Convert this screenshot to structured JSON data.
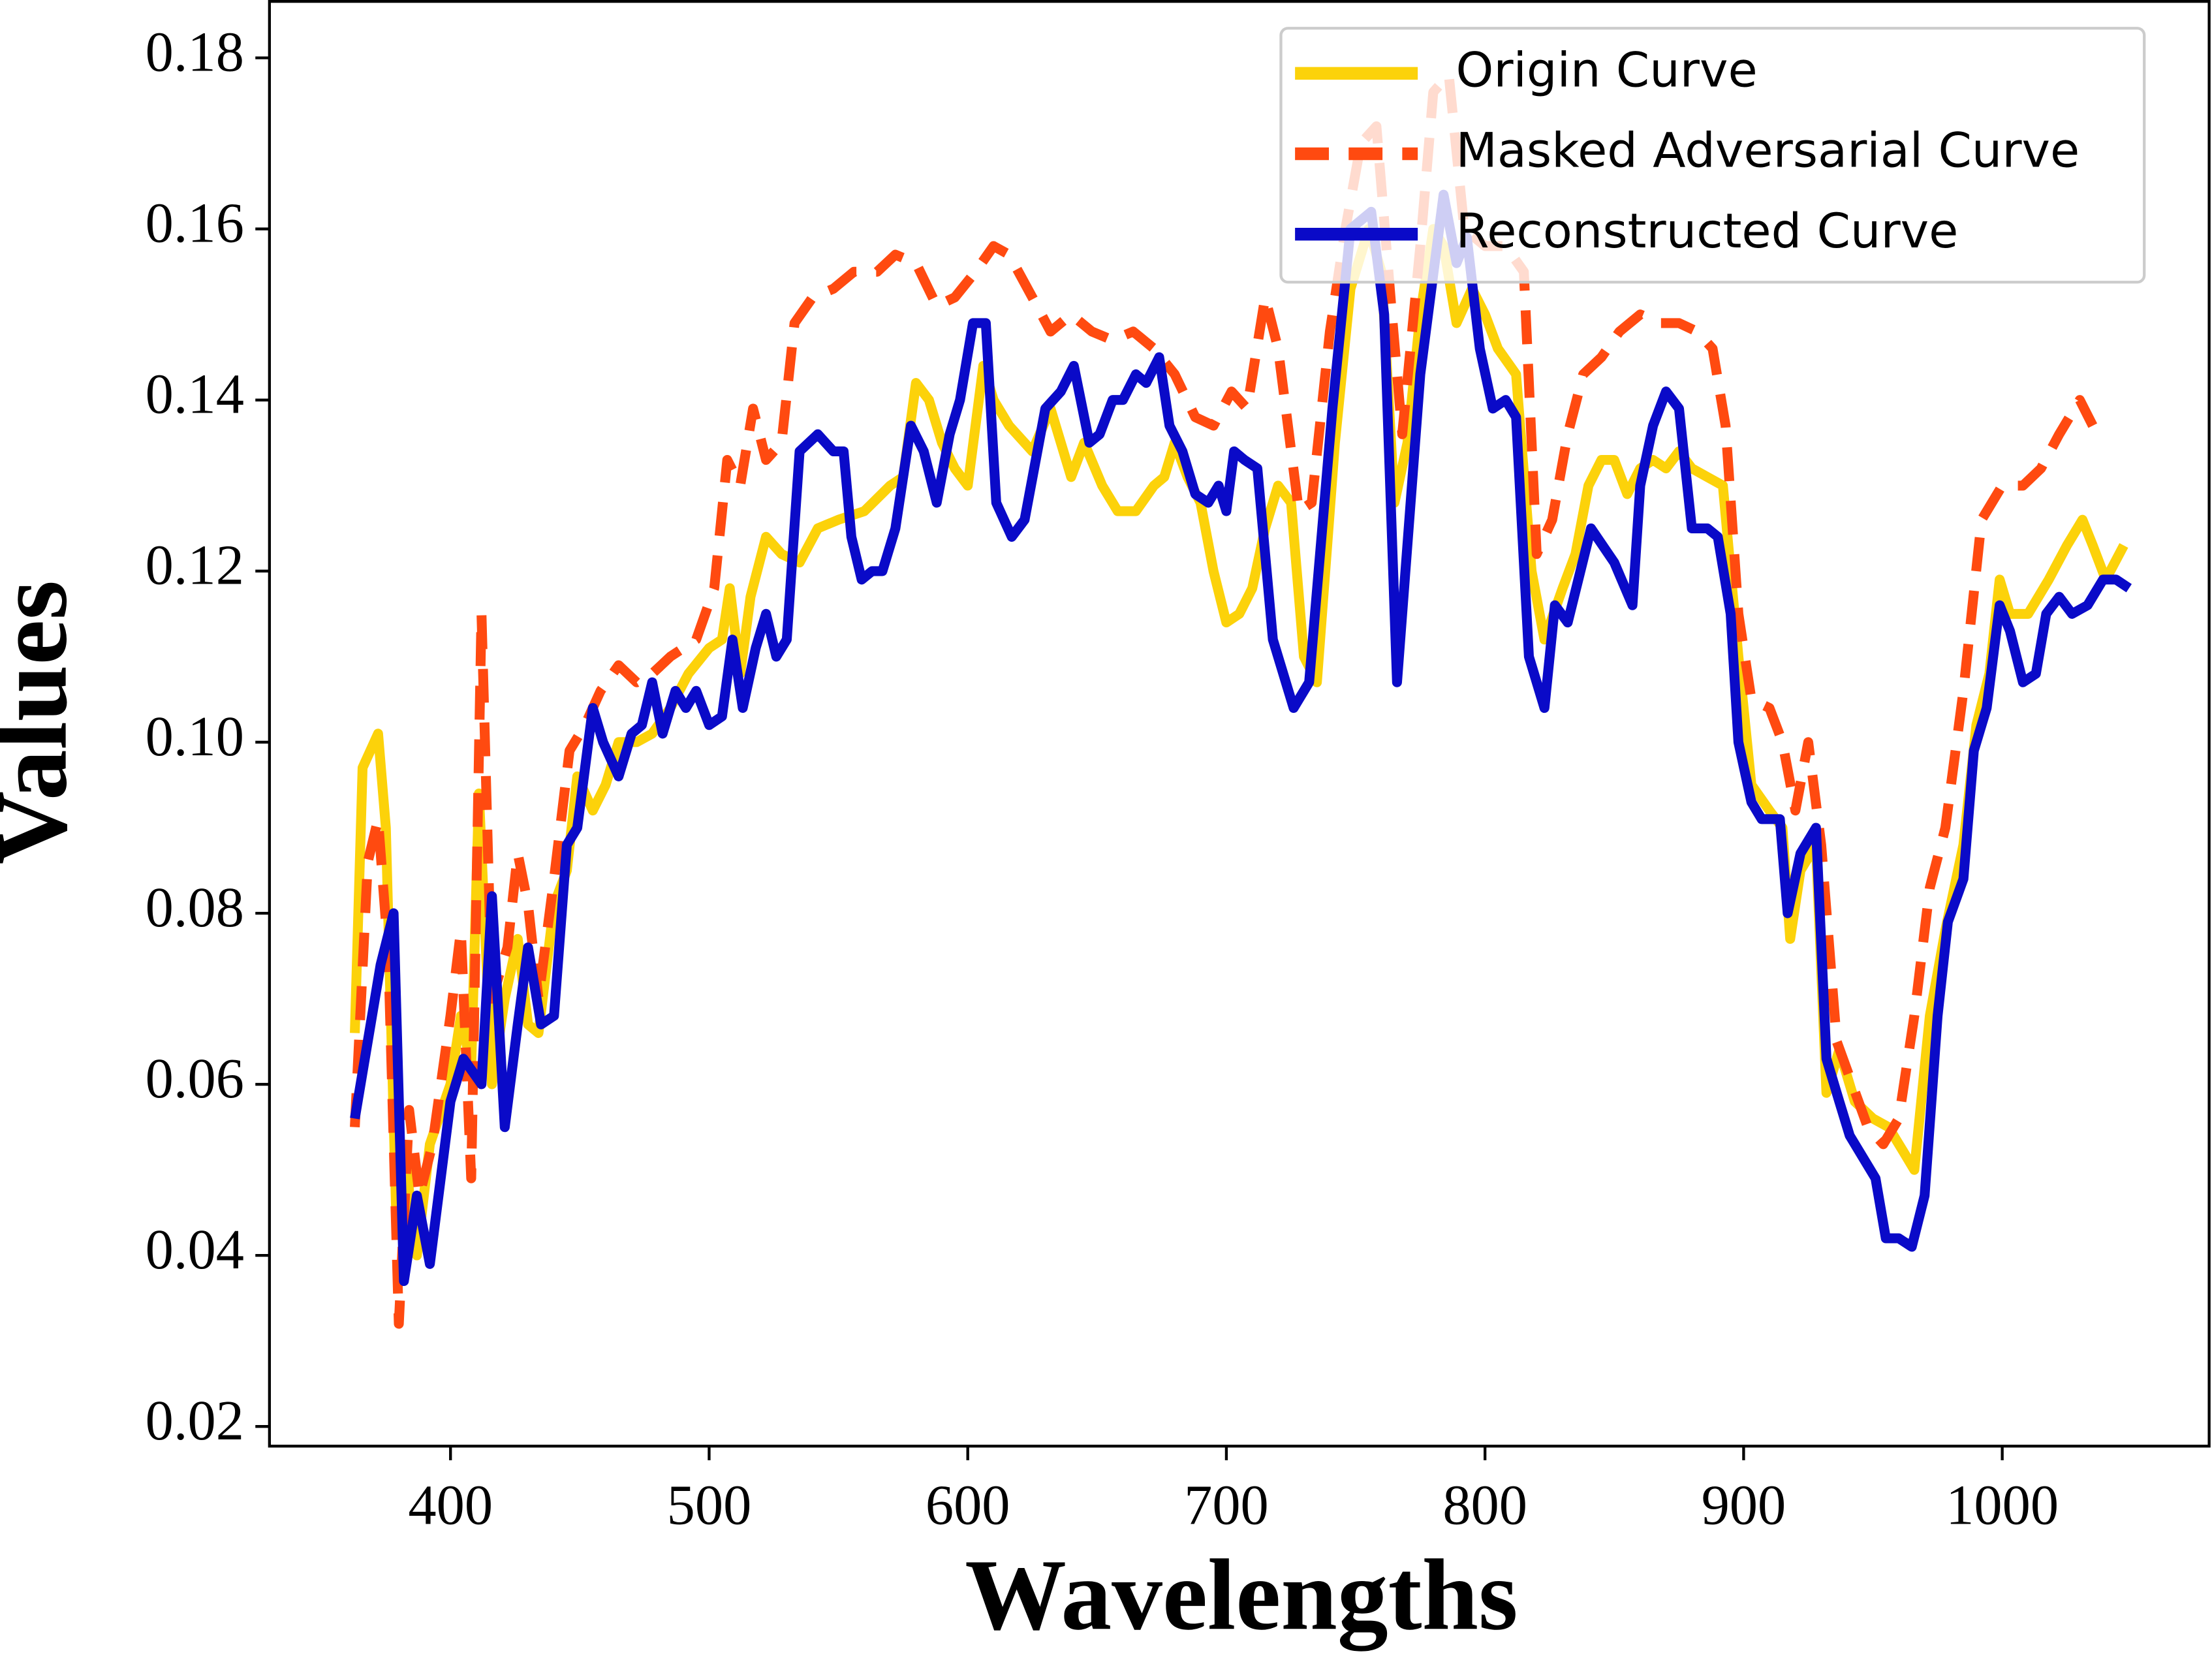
{
  "chart_data": {
    "type": "line",
    "xlabel": "Wavelengths",
    "ylabel": "Values",
    "xlim": [
      330,
      1080
    ],
    "ylim": [
      0.0177,
      0.1866
    ],
    "xticks": [
      400,
      500,
      600,
      700,
      800,
      900,
      1000
    ],
    "yticks": [
      0.02,
      0.04,
      0.06,
      0.08,
      {
        "value": 0.1,
        "label": "0.10"
      },
      0.12,
      0.14,
      0.16,
      0.18
    ],
    "legend": "upper right",
    "series": [
      {
        "name": "Origin Curve",
        "color": "#fcd20a",
        "linestyle": "solid",
        "x": [
          363,
          366,
          372,
          375,
          379,
          383,
          387,
          392,
          400,
          404,
          408,
          411,
          416,
          421,
          426,
          430,
          434,
          440,
          445,
          449,
          455,
          460,
          465,
          472,
          478,
          485,
          492,
          500,
          505,
          508,
          512,
          516,
          522,
          528,
          535,
          542,
          550,
          560,
          570,
          575,
          580,
          585,
          590,
          595,
          600,
          606,
          610,
          616,
          625,
          632,
          640,
          645,
          652,
          658,
          665,
          672,
          676,
          680,
          685,
          690,
          695,
          700,
          705,
          710,
          715,
          720,
          725,
          730,
          735,
          742,
          748,
          755,
          760,
          765,
          770,
          775,
          780,
          784,
          789,
          795,
          800,
          805,
          812,
          818,
          823,
          830,
          835,
          840,
          845,
          850,
          855,
          860,
          865,
          870,
          875,
          880,
          886,
          892,
          898,
          903,
          910,
          915,
          918,
          922,
          928,
          932,
          937,
          943,
          950,
          956,
          962,
          966,
          972,
          978,
          985,
          990,
          995,
          999,
          1003,
          1010,
          1018,
          1025,
          1031,
          1035,
          1040,
          1047
        ],
        "values": [
          0.066,
          0.097,
          0.101,
          0.09,
          0.045,
          0.05,
          0.04,
          0.053,
          0.06,
          0.068,
          0.062,
          0.094,
          0.06,
          0.07,
          0.077,
          0.067,
          0.066,
          0.081,
          0.085,
          0.096,
          0.092,
          0.095,
          0.1,
          0.1,
          0.101,
          0.104,
          0.108,
          0.111,
          0.112,
          0.118,
          0.108,
          0.117,
          0.124,
          0.122,
          0.121,
          0.125,
          0.126,
          0.127,
          0.13,
          0.131,
          0.142,
          0.14,
          0.135,
          0.132,
          0.13,
          0.144,
          0.14,
          0.137,
          0.134,
          0.139,
          0.131,
          0.135,
          0.13,
          0.127,
          0.127,
          0.13,
          0.131,
          0.135,
          0.131,
          0.128,
          0.12,
          0.114,
          0.115,
          0.118,
          0.125,
          0.13,
          0.128,
          0.11,
          0.107,
          0.135,
          0.153,
          0.16,
          0.155,
          0.128,
          0.135,
          0.15,
          0.16,
          0.158,
          0.149,
          0.153,
          0.15,
          0.146,
          0.143,
          0.12,
          0.112,
          0.118,
          0.122,
          0.13,
          0.133,
          0.133,
          0.129,
          0.132,
          0.133,
          0.132,
          0.134,
          0.132,
          0.131,
          0.13,
          0.11,
          0.095,
          0.092,
          0.09,
          0.077,
          0.085,
          0.088,
          0.059,
          0.064,
          0.058,
          0.056,
          0.055,
          0.052,
          0.05,
          0.068,
          0.078,
          0.088,
          0.102,
          0.108,
          0.119,
          0.115,
          0.115,
          0.119,
          0.123,
          0.126,
          0.123,
          0.119,
          0.123
        ]
      },
      {
        "name": "Masked Adversarial Curve",
        "color": "#ff4a10",
        "linestyle": "dashed",
        "x": [
          363,
          368,
          372,
          376,
          380,
          384,
          388,
          393,
          400,
          404,
          408,
          412,
          416,
          422,
          426,
          430,
          434,
          440,
          446,
          452,
          458,
          465,
          472,
          478,
          485,
          495,
          502,
          507,
          512,
          517,
          522,
          528,
          533,
          540,
          548,
          556,
          565,
          572,
          580,
          588,
          595,
          603,
          610,
          616,
          625,
          632,
          640,
          648,
          656,
          664,
          672,
          680,
          688,
          695,
          702,
          708,
          715,
          720,
          728,
          733,
          740,
          746,
          752,
          758,
          764,
          768,
          775,
          780,
          786,
          792,
          800,
          808,
          815,
          820,
          826,
          832,
          838,
          845,
          852,
          860,
          868,
          875,
          882,
          888,
          893,
          898,
          903,
          910,
          915,
          920,
          925,
          930,
          936,
          942,
          948,
          954,
          960,
          966,
          972,
          978,
          985,
          992,
          1000,
          1008,
          1015,
          1022,
          1030,
          1035
        ],
        "values": [
          0.055,
          0.086,
          0.091,
          0.075,
          0.032,
          0.057,
          0.047,
          0.053,
          0.068,
          0.078,
          0.049,
          0.115,
          0.07,
          0.076,
          0.087,
          0.081,
          0.07,
          0.084,
          0.099,
          0.102,
          0.106,
          0.109,
          0.107,
          0.108,
          0.11,
          0.112,
          0.118,
          0.133,
          0.13,
          0.139,
          0.133,
          0.135,
          0.149,
          0.152,
          0.153,
          0.155,
          0.155,
          0.157,
          0.156,
          0.151,
          0.152,
          0.155,
          0.158,
          0.157,
          0.152,
          0.148,
          0.15,
          0.148,
          0.147,
          0.148,
          0.146,
          0.143,
          0.138,
          0.137,
          0.141,
          0.139,
          0.152,
          0.146,
          0.127,
          0.128,
          0.148,
          0.16,
          0.17,
          0.172,
          0.15,
          0.136,
          0.158,
          0.176,
          0.178,
          0.16,
          0.158,
          0.158,
          0.155,
          0.122,
          0.126,
          0.136,
          0.143,
          0.145,
          0.148,
          0.15,
          0.149,
          0.149,
          0.148,
          0.146,
          0.137,
          0.115,
          0.105,
          0.104,
          0.1,
          0.092,
          0.1,
          0.088,
          0.065,
          0.06,
          0.055,
          0.053,
          0.056,
          0.068,
          0.083,
          0.09,
          0.106,
          0.126,
          0.13,
          0.13,
          0.132,
          0.136,
          0.14,
          0.137
        ]
      },
      {
        "name": "Reconstructed Curve",
        "color": "#0a0ac8",
        "linestyle": "solid",
        "x": [
          363,
          373,
          378,
          382,
          387,
          392,
          400,
          405,
          412,
          416,
          421,
          426,
          430,
          435,
          440,
          445,
          449,
          455,
          459,
          465,
          470,
          474,
          478,
          482,
          487,
          491,
          495,
          500,
          505,
          509,
          513,
          518,
          522,
          526,
          530,
          535,
          542,
          548,
          552,
          555,
          559,
          563,
          567,
          572,
          578,
          583,
          588,
          593,
          597,
          602,
          607,
          611,
          617,
          622,
          630,
          636,
          641,
          647,
          651,
          656,
          660,
          665,
          669,
          674,
          678,
          683,
          688,
          693,
          697,
          700,
          703,
          707,
          712,
          718,
          726,
          732,
          741,
          748,
          756,
          761,
          766,
          775,
          784,
          789,
          793,
          798,
          803,
          808,
          812,
          817,
          823,
          827,
          832,
          841,
          850,
          857,
          860,
          865,
          870,
          875,
          880,
          886,
          890,
          895,
          898,
          903,
          907,
          914,
          917,
          922,
          928,
          932,
          937,
          941,
          951,
          955,
          960,
          965,
          970,
          975,
          979,
          985,
          989,
          994,
          999,
          1003,
          1008,
          1013,
          1017,
          1022,
          1027,
          1033,
          1039,
          1044,
          1049
        ],
        "values": [
          0.056,
          0.074,
          0.08,
          0.037,
          0.047,
          0.039,
          0.058,
          0.063,
          0.06,
          0.082,
          0.055,
          0.067,
          0.076,
          0.067,
          0.068,
          0.088,
          0.09,
          0.104,
          0.1,
          0.096,
          0.101,
          0.102,
          0.107,
          0.101,
          0.106,
          0.104,
          0.106,
          0.102,
          0.103,
          0.112,
          0.104,
          0.111,
          0.115,
          0.11,
          0.112,
          0.134,
          0.136,
          0.134,
          0.134,
          0.124,
          0.119,
          0.12,
          0.12,
          0.125,
          0.137,
          0.134,
          0.128,
          0.136,
          0.14,
          0.149,
          0.149,
          0.128,
          0.124,
          0.126,
          0.139,
          0.141,
          0.144,
          0.135,
          0.136,
          0.14,
          0.14,
          0.143,
          0.142,
          0.145,
          0.137,
          0.134,
          0.129,
          0.128,
          0.13,
          0.127,
          0.134,
          0.133,
          0.132,
          0.112,
          0.104,
          0.107,
          0.139,
          0.16,
          0.162,
          0.15,
          0.107,
          0.143,
          0.164,
          0.156,
          0.159,
          0.146,
          0.139,
          0.14,
          0.138,
          0.11,
          0.104,
          0.116,
          0.114,
          0.125,
          0.121,
          0.116,
          0.13,
          0.137,
          0.141,
          0.139,
          0.125,
          0.125,
          0.124,
          0.115,
          0.1,
          0.093,
          0.091,
          0.091,
          0.08,
          0.087,
          0.09,
          0.063,
          0.058,
          0.054,
          0.049,
          0.042,
          0.042,
          0.041,
          0.047,
          0.068,
          0.079,
          0.084,
          0.099,
          0.104,
          0.116,
          0.113,
          0.107,
          0.108,
          0.115,
          0.117,
          0.115,
          0.116,
          0.119,
          0.119,
          0.118
        ]
      }
    ]
  }
}
